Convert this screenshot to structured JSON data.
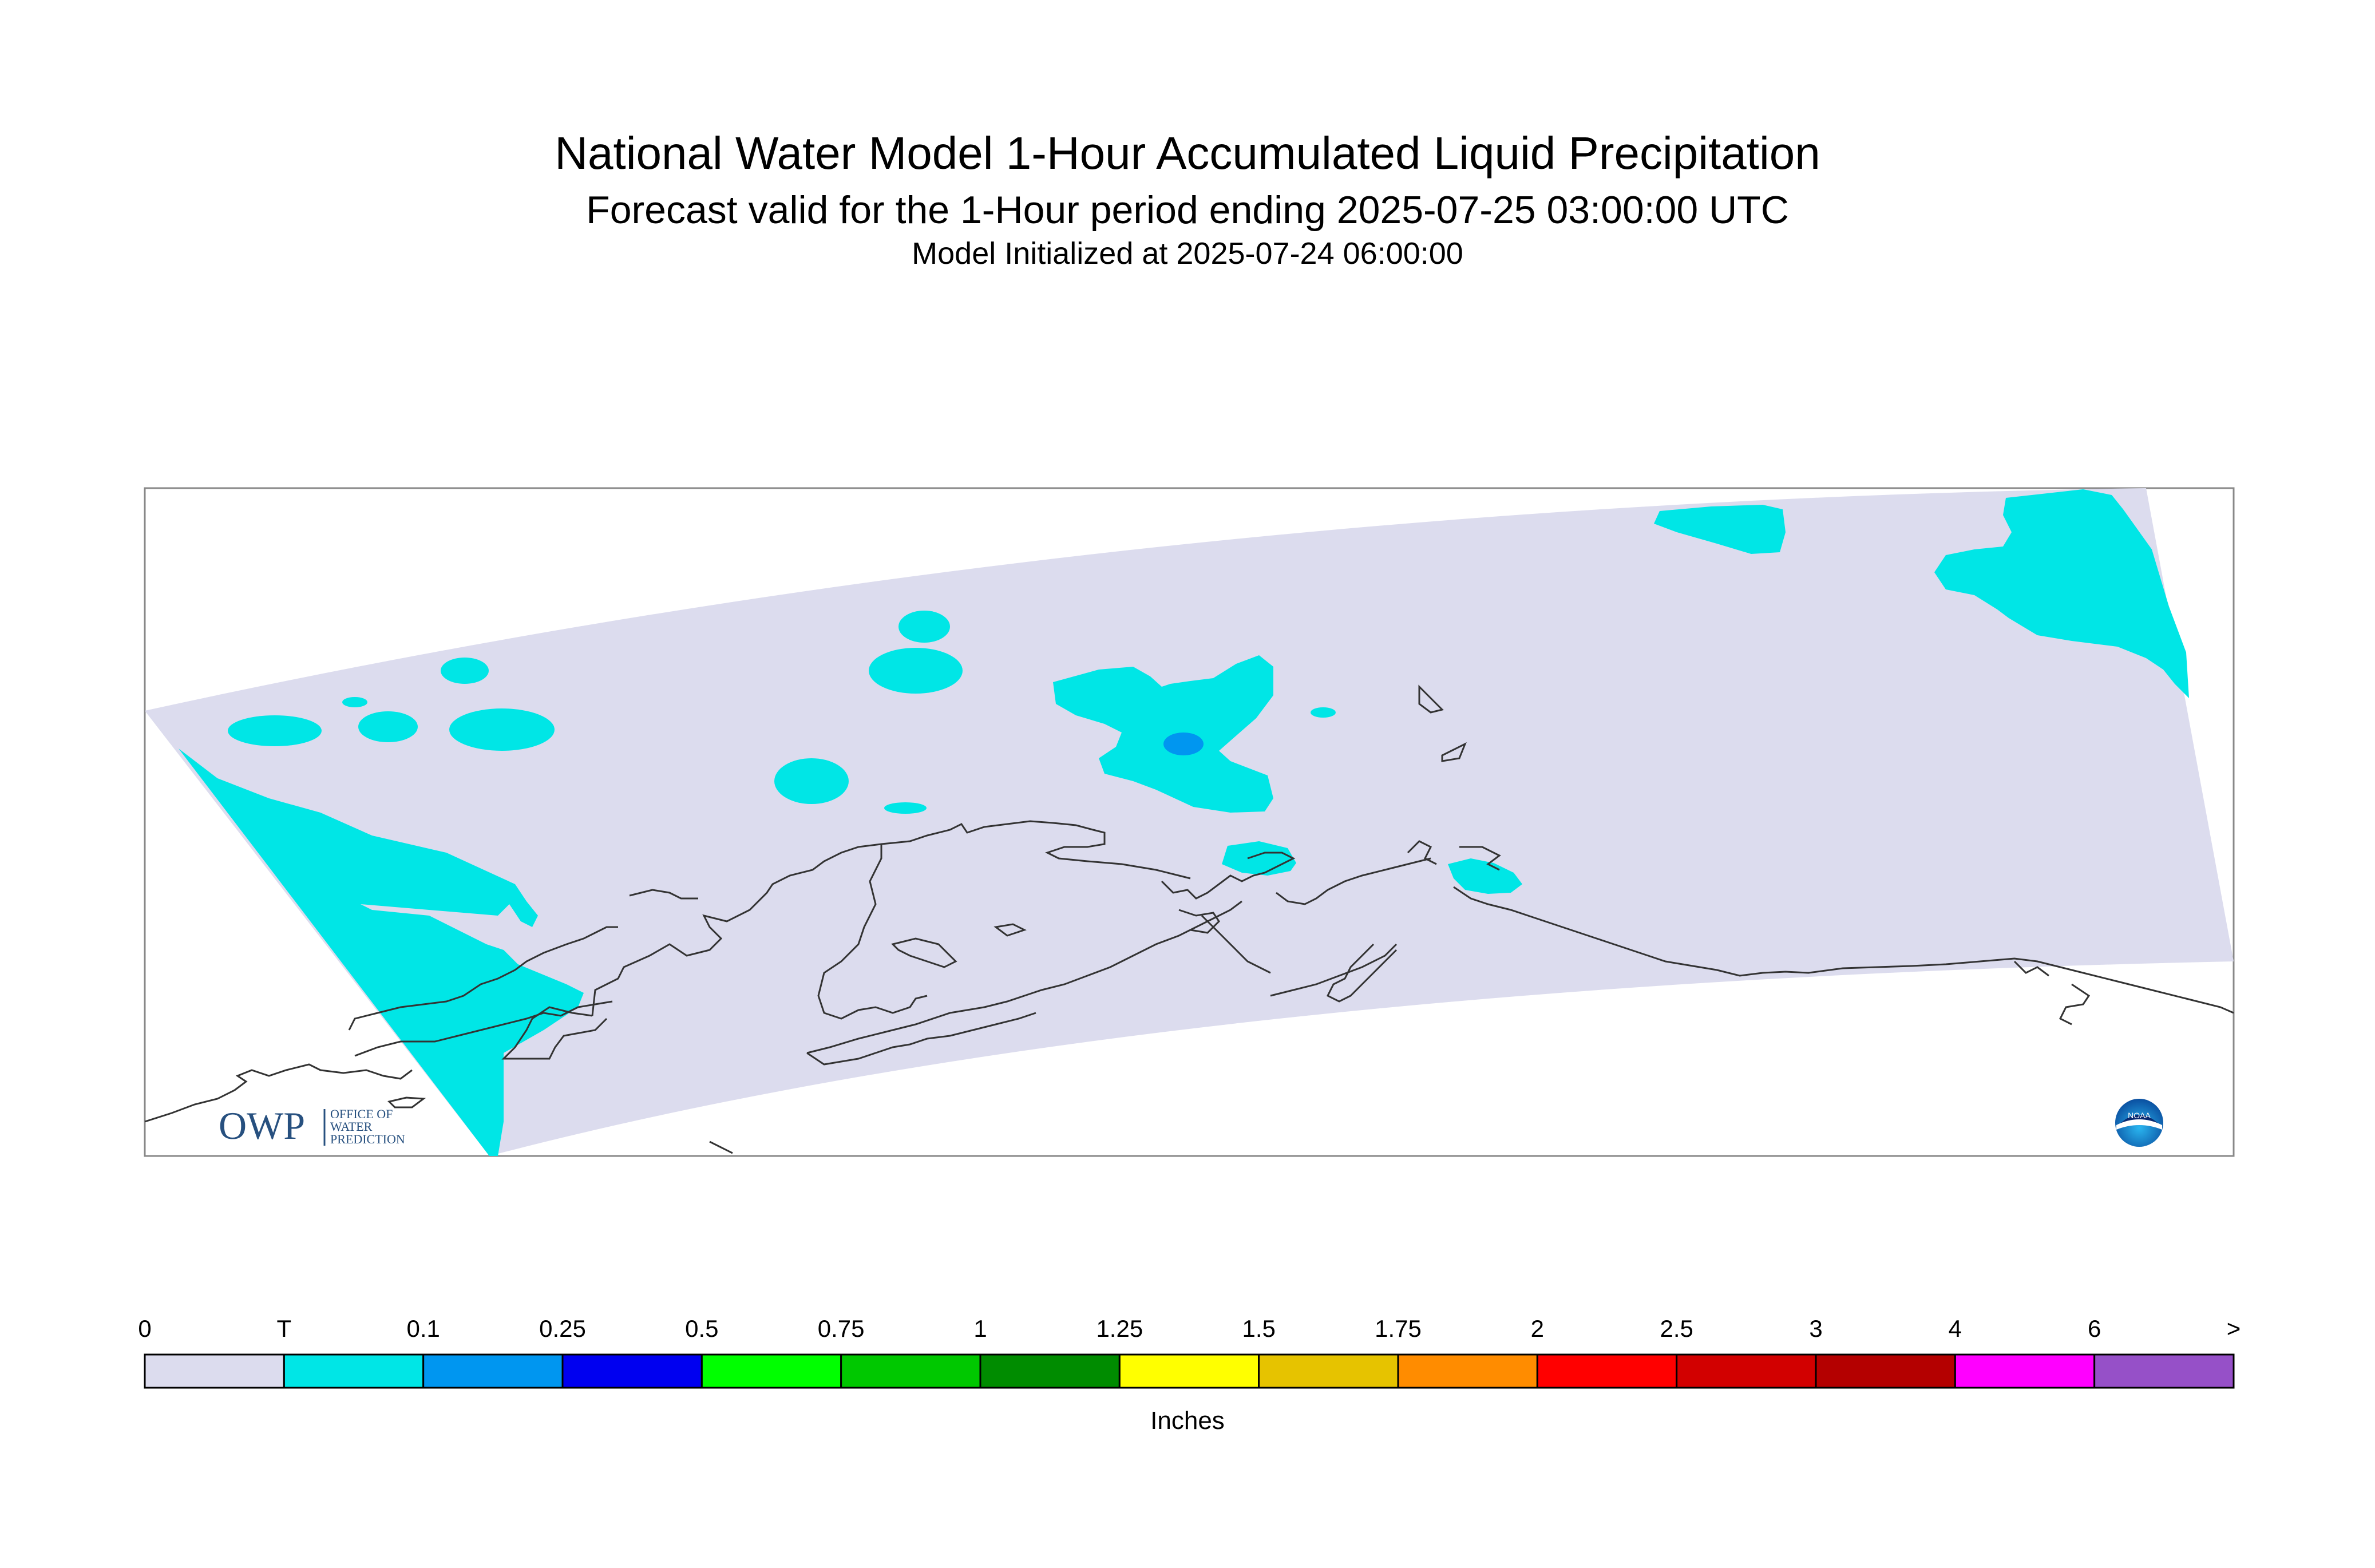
{
  "header": {
    "title": "National Water Model 1-Hour Accumulated Liquid Precipitation",
    "subtitle": "Forecast valid for the 1-Hour period ending 2025-07-25 03:00:00 UTC",
    "init": "Model Initialized at 2025-07-24 06:00:00"
  },
  "legend": {
    "units": "Inches",
    "labels": [
      "0",
      "T",
      "0.1",
      "0.25",
      "0.5",
      "0.75",
      "1",
      "1.25",
      "1.5",
      "1.75",
      "2",
      "2.5",
      "3",
      "4",
      "6",
      ">"
    ],
    "colors": [
      "#dcdcee",
      "#00e6e6",
      "#0096f0",
      "#0000f0",
      "#00ff00",
      "#00c800",
      "#008c00",
      "#ffff00",
      "#e6c300",
      "#ff8c00",
      "#ff0000",
      "#d20000",
      "#b40000",
      "#ff00ff",
      "#9650c8"
    ]
  },
  "logos": {
    "owp_mark": "OWP",
    "owp_text": [
      "OFFICE OF",
      "WATER",
      "PREDICTION"
    ],
    "noaa_text": "NOAA"
  },
  "map": {
    "domain_color": "#dcdcee",
    "trace_color": "#00e6e6",
    "light_color": "#0096f0",
    "coast_color": "#333333"
  }
}
